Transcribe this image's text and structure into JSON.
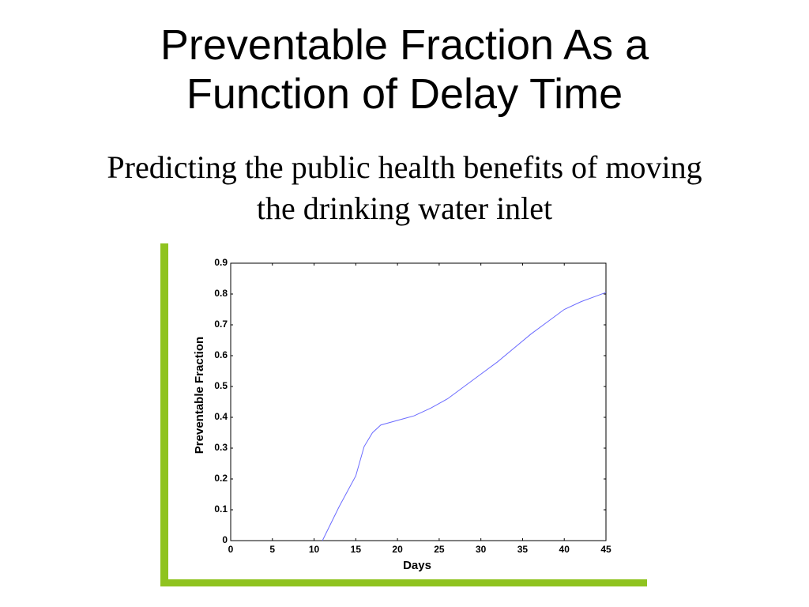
{
  "slide": {
    "title": [
      "Preventable Fraction As a",
      "Function of Delay Time"
    ],
    "subtitle": [
      "Predicting the public health benefits of moving",
      "the drinking water inlet"
    ]
  },
  "chart_data": {
    "type": "line",
    "xlabel": "Days",
    "ylabel": "Preventable Fraction",
    "x": [
      11,
      13,
      15,
      16,
      17,
      18,
      20,
      22,
      24,
      26,
      28,
      30,
      32,
      34,
      36,
      38,
      40,
      42,
      44,
      45
    ],
    "values": [
      0,
      0.11,
      0.21,
      0.305,
      0.35,
      0.375,
      0.39,
      0.405,
      0.43,
      0.46,
      0.5,
      0.54,
      0.58,
      0.625,
      0.67,
      0.71,
      0.75,
      0.775,
      0.795,
      0.805
    ],
    "color": "#6b6bff",
    "xlim": [
      0,
      45
    ],
    "xticks": [
      0,
      5,
      10,
      15,
      20,
      25,
      30,
      35,
      40,
      45
    ],
    "ylim": [
      0,
      0.9
    ],
    "yticks": [
      0,
      0.1,
      0.2,
      0.3,
      0.4,
      0.5,
      0.6,
      0.7,
      0.8,
      0.9
    ],
    "grid": false
  }
}
